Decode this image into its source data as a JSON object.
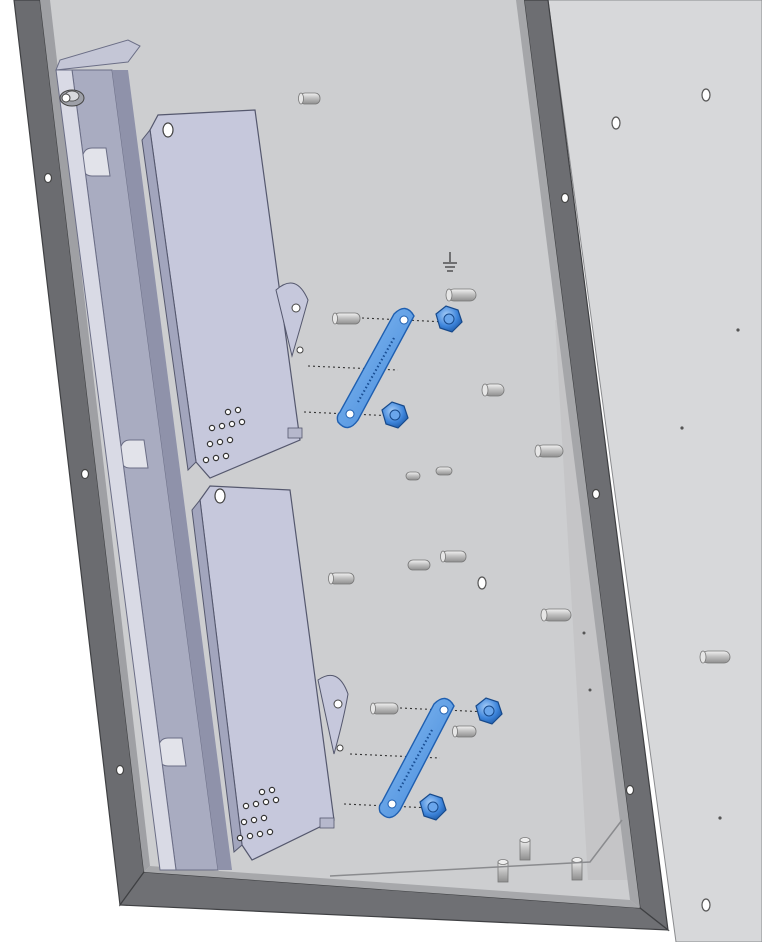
{
  "figure": {
    "kind": "cad-exploded-assembly",
    "colors": {
      "background": "#ffffff",
      "panel": "#cfd0d2",
      "panel_right": "#d8d9db",
      "frame": "#6e6f72",
      "frame_dark": "#4a4b4e",
      "frame_light": "#a9aaad",
      "bracket": "#c7c9dc",
      "bracket_dark": "#9c9fb6",
      "rail": "#a7aac0",
      "highlight": "#5a9be8",
      "highlight_dark": "#2d6fc4",
      "leader": "#333333",
      "stud": "#bfbfbf"
    },
    "highlighted_parts": [
      "strap-upper",
      "strap-lower",
      "nut-upper-1",
      "nut-upper-2",
      "nut-lower-1",
      "nut-lower-2"
    ],
    "icons": [
      "ground-symbol-icon"
    ]
  }
}
